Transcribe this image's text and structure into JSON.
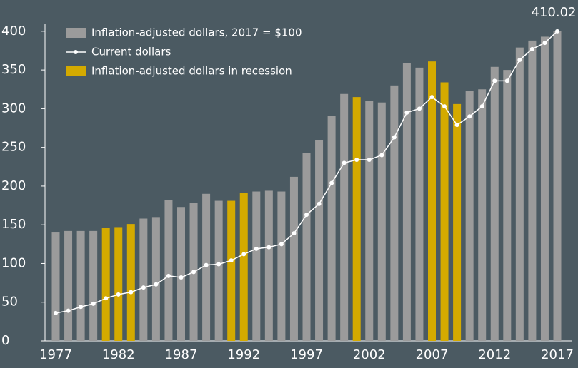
{
  "chart_data": {
    "type": "bar_line",
    "annotation": "410.02",
    "categories": [
      "1977",
      null,
      null,
      null,
      null,
      "1982",
      null,
      null,
      null,
      null,
      "1987",
      null,
      null,
      null,
      null,
      "1992",
      null,
      null,
      null,
      null,
      "1997",
      null,
      null,
      null,
      null,
      "2002",
      null,
      null,
      null,
      null,
      "2007",
      null,
      null,
      null,
      null,
      "2012",
      null,
      null,
      null,
      null,
      "2017"
    ],
    "series": [
      {
        "name": "Inflation-adjusted dollars, 2017 = $100",
        "color": "#9b9b9b",
        "kind": "bar",
        "values": [
          140,
          142,
          142,
          142,
          null,
          null,
          null,
          158,
          160,
          182,
          173,
          178,
          190,
          181,
          null,
          null,
          193,
          194,
          193,
          212,
          243,
          259,
          291,
          319,
          null,
          310,
          308,
          330,
          359,
          353,
          null,
          null,
          null,
          323,
          325,
          354,
          350,
          379,
          388,
          393,
          400
        ]
      },
      {
        "name": "Current dollars",
        "color": "#ffffff",
        "kind": "line",
        "values": [
          36,
          39,
          44,
          48,
          55,
          60,
          63,
          69,
          73,
          84,
          82,
          89,
          98,
          99,
          104,
          112,
          119,
          121,
          125,
          139,
          163,
          177,
          204,
          230,
          234,
          234,
          240,
          263,
          295,
          300,
          315,
          303,
          279,
          290,
          303,
          336,
          336,
          363,
          377,
          385,
          400
        ]
      },
      {
        "name": "Inflation-adjusted dollars in recession",
        "color": "#d4aa00",
        "kind": "bar",
        "values": [
          null,
          null,
          null,
          null,
          146,
          147,
          151,
          null,
          null,
          null,
          null,
          null,
          null,
          null,
          181,
          191,
          null,
          null,
          null,
          null,
          null,
          null,
          null,
          null,
          315,
          null,
          null,
          null,
          null,
          null,
          361,
          334,
          306,
          null,
          null,
          null,
          null,
          null,
          null,
          null,
          null
        ]
      }
    ],
    "ylim": [
      0,
      410
    ],
    "yticks": [
      0,
      50,
      100,
      150,
      200,
      250,
      300,
      350,
      400
    ],
    "grid": false
  }
}
